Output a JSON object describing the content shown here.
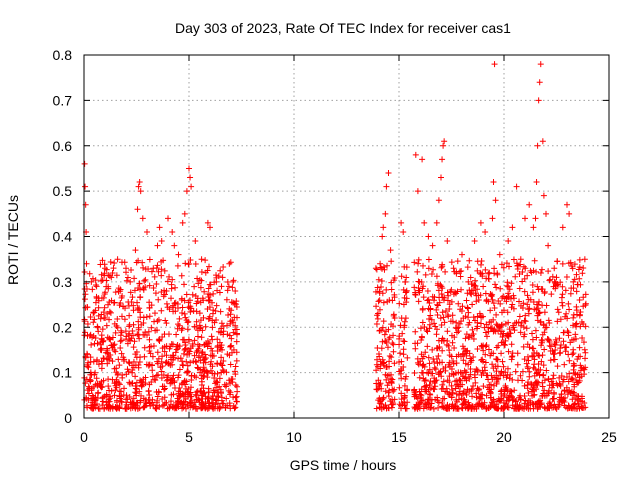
{
  "chart_data": {
    "type": "scatter",
    "title": "Day 303 of 2023, Rate Of TEC Index for receiver cas1",
    "xlabel": "GPS time / hours",
    "ylabel": "ROTI / TECUs",
    "xlim": [
      0,
      25
    ],
    "ylim": [
      0,
      0.8
    ],
    "xticks": [
      0,
      5,
      10,
      15,
      20,
      25
    ],
    "yticks": [
      0,
      0.1,
      0.2,
      0.3,
      0.4,
      0.5,
      0.6,
      0.7,
      0.8
    ],
    "grid": true,
    "marker": "+",
    "color": "#ff0000",
    "series": [
      {
        "segments": [
          {
            "x_start": 0.0,
            "x_end": 7.3,
            "y_base_range": [
              0.02,
              0.3
            ]
          },
          {
            "x_start": 13.9,
            "x_end": 14.8,
            "y_base_range": [
              0.02,
              0.3
            ]
          },
          {
            "x_start": 15.0,
            "x_end": 15.4,
            "y_base_range": [
              0.02,
              0.3
            ]
          },
          {
            "x_start": 15.7,
            "x_end": 23.9,
            "y_base_range": [
              0.02,
              0.3
            ]
          }
        ],
        "points": [
          [
            0.03,
            0.56
          ],
          [
            0.05,
            0.51
          ],
          [
            0.08,
            0.47
          ],
          [
            0.1,
            0.41
          ],
          [
            0.12,
            0.34
          ],
          [
            0.35,
            0.3
          ],
          [
            0.6,
            0.29
          ],
          [
            1.0,
            0.33
          ],
          [
            1.3,
            0.31
          ],
          [
            1.6,
            0.35
          ],
          [
            2.0,
            0.33
          ],
          [
            2.2,
            0.3
          ],
          [
            2.45,
            0.37
          ],
          [
            2.55,
            0.46
          ],
          [
            2.6,
            0.51
          ],
          [
            2.65,
            0.52
          ],
          [
            2.7,
            0.5
          ],
          [
            2.8,
            0.44
          ],
          [
            3.0,
            0.41
          ],
          [
            3.3,
            0.33
          ],
          [
            3.5,
            0.38
          ],
          [
            3.6,
            0.42
          ],
          [
            3.7,
            0.39
          ],
          [
            4.0,
            0.44
          ],
          [
            4.2,
            0.41
          ],
          [
            4.3,
            0.38
          ],
          [
            4.5,
            0.36
          ],
          [
            4.7,
            0.43
          ],
          [
            4.8,
            0.45
          ],
          [
            4.9,
            0.5
          ],
          [
            5.0,
            0.55
          ],
          [
            5.05,
            0.53
          ],
          [
            5.1,
            0.51
          ],
          [
            5.3,
            0.39
          ],
          [
            5.6,
            0.35
          ],
          [
            5.8,
            0.32
          ],
          [
            5.9,
            0.43
          ],
          [
            6.0,
            0.42
          ],
          [
            6.3,
            0.3
          ],
          [
            6.6,
            0.31
          ],
          [
            6.9,
            0.29
          ],
          [
            7.1,
            0.3
          ],
          [
            7.2,
            0.28
          ],
          [
            13.9,
            0.33
          ],
          [
            14.1,
            0.34
          ],
          [
            14.2,
            0.4
          ],
          [
            14.25,
            0.42
          ],
          [
            14.35,
            0.45
          ],
          [
            14.4,
            0.51
          ],
          [
            14.5,
            0.54
          ],
          [
            14.6,
            0.37
          ],
          [
            15.1,
            0.43
          ],
          [
            15.2,
            0.41
          ],
          [
            15.3,
            0.3
          ],
          [
            15.8,
            0.58
          ],
          [
            15.9,
            0.5
          ],
          [
            16.1,
            0.57
          ],
          [
            16.2,
            0.43
          ],
          [
            16.4,
            0.4
          ],
          [
            16.6,
            0.38
          ],
          [
            16.8,
            0.43
          ],
          [
            16.9,
            0.48
          ],
          [
            17.0,
            0.53
          ],
          [
            17.05,
            0.57
          ],
          [
            17.1,
            0.6
          ],
          [
            17.15,
            0.61
          ],
          [
            17.3,
            0.39
          ],
          [
            17.6,
            0.33
          ],
          [
            18.0,
            0.36
          ],
          [
            18.3,
            0.3
          ],
          [
            18.6,
            0.39
          ],
          [
            18.9,
            0.43
          ],
          [
            19.1,
            0.41
          ],
          [
            19.3,
            0.32
          ],
          [
            19.45,
            0.44
          ],
          [
            19.5,
            0.52
          ],
          [
            19.55,
            0.78
          ],
          [
            19.6,
            0.48
          ],
          [
            19.8,
            0.36
          ],
          [
            20.2,
            0.39
          ],
          [
            20.4,
            0.42
          ],
          [
            20.6,
            0.51
          ],
          [
            20.8,
            0.35
          ],
          [
            21.0,
            0.44
          ],
          [
            21.2,
            0.47
          ],
          [
            21.4,
            0.42
          ],
          [
            21.5,
            0.44
          ],
          [
            21.55,
            0.52
          ],
          [
            21.6,
            0.6
          ],
          [
            21.65,
            0.7
          ],
          [
            21.7,
            0.74
          ],
          [
            21.75,
            0.78
          ],
          [
            21.85,
            0.61
          ],
          [
            21.9,
            0.49
          ],
          [
            22.0,
            0.45
          ],
          [
            22.1,
            0.38
          ],
          [
            22.5,
            0.31
          ],
          [
            22.8,
            0.42
          ],
          [
            23.0,
            0.47
          ],
          [
            23.1,
            0.45
          ],
          [
            23.3,
            0.3
          ],
          [
            23.6,
            0.26
          ],
          [
            23.85,
            0.35
          ]
        ]
      }
    ]
  }
}
